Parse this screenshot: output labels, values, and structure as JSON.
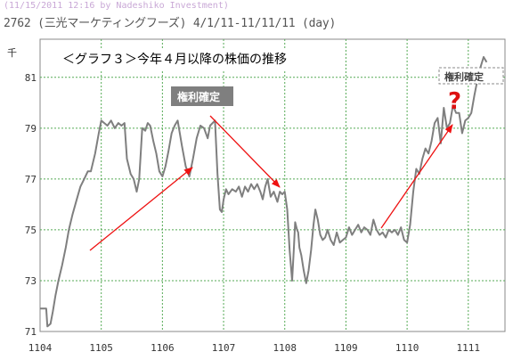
{
  "header": {
    "timestamp_line": "(11/15/2011 12:16 by Nadeshiko Investment)",
    "title_line": "2762 (三光マーケティングフーズ) 4/1/11-11/11/11 (day)"
  },
  "colors": {
    "background": "#ffffff",
    "plot_background": "#ffffff",
    "grid": "#55aa55",
    "price_line": "#7f7f7f",
    "arrow": "#ee1111",
    "label_box": "#7f7f7f",
    "question_mark": "#dd1111"
  },
  "chart_data": {
    "type": "line",
    "title": "",
    "ylabel": "千",
    "xlabel": "",
    "ylim": [
      71,
      82.5
    ],
    "yticks": [
      71,
      73,
      75,
      77,
      79,
      81
    ],
    "xlim": [
      0,
      7.6
    ],
    "x_ticks": [
      {
        "pos": 0,
        "label": "1104"
      },
      {
        "pos": 1,
        "label": "1105"
      },
      {
        "pos": 2,
        "label": "1106"
      },
      {
        "pos": 3,
        "label": "1107"
      },
      {
        "pos": 4,
        "label": "1108"
      },
      {
        "pos": 5,
        "label": "1109"
      },
      {
        "pos": 6,
        "label": "1110"
      },
      {
        "pos": 7,
        "label": "1111"
      }
    ],
    "grid": true,
    "series": [
      {
        "name": "",
        "x": [
          0.0,
          0.1,
          0.12,
          0.17,
          0.21,
          0.25,
          0.3,
          0.36,
          0.42,
          0.47,
          0.53,
          0.6,
          0.66,
          0.72,
          0.78,
          0.83,
          0.9,
          0.96,
          1.0,
          1.05,
          1.1,
          1.16,
          1.22,
          1.28,
          1.33,
          1.38,
          1.42,
          1.48,
          1.53,
          1.58,
          1.62,
          1.67,
          1.72,
          1.76,
          1.8,
          1.85,
          1.9,
          1.95,
          2.0,
          2.05,
          2.1,
          2.15,
          2.2,
          2.25,
          2.32,
          2.38,
          2.44,
          2.5,
          2.56,
          2.62,
          2.68,
          2.74,
          2.78,
          2.82,
          2.86,
          2.9,
          2.94,
          2.97,
          3.0,
          3.04,
          3.08,
          3.14,
          3.2,
          3.25,
          3.3,
          3.35,
          3.4,
          3.45,
          3.5,
          3.55,
          3.6,
          3.64,
          3.68,
          3.72,
          3.77,
          3.82,
          3.88,
          3.92,
          3.96,
          4.0,
          4.04,
          4.08,
          4.12,
          4.15,
          4.17,
          4.2,
          4.22,
          4.24,
          4.27,
          4.31,
          4.35,
          4.39,
          4.43,
          4.47,
          4.5,
          4.54,
          4.58,
          4.62,
          4.66,
          4.7,
          4.75,
          4.8,
          4.85,
          4.9,
          4.95,
          5.0,
          5.05,
          5.1,
          5.15,
          5.2,
          5.25,
          5.3,
          5.35,
          5.4,
          5.45,
          5.5,
          5.55,
          5.6,
          5.65,
          5.7,
          5.75,
          5.8,
          5.85,
          5.9,
          5.95,
          6.0,
          6.05,
          6.1,
          6.15,
          6.2,
          6.25,
          6.3,
          6.35,
          6.4,
          6.45,
          6.5,
          6.55,
          6.6,
          6.65,
          6.7,
          6.75,
          6.8,
          6.85,
          6.9,
          6.95,
          7.0,
          7.05,
          7.1,
          7.15,
          7.2,
          7.25,
          7.3
        ],
        "values": [
          71.9,
          71.9,
          71.2,
          71.3,
          71.8,
          72.4,
          73.0,
          73.6,
          74.3,
          75.0,
          75.6,
          76.2,
          76.7,
          77.0,
          77.3,
          77.3,
          78.0,
          78.8,
          79.3,
          79.2,
          79.1,
          79.3,
          79.0,
          79.2,
          79.1,
          79.2,
          77.8,
          77.2,
          77.0,
          76.5,
          77.0,
          79.0,
          78.9,
          79.2,
          79.1,
          78.5,
          78.0,
          77.3,
          77.1,
          77.5,
          78.1,
          78.8,
          79.1,
          79.3,
          78.3,
          77.5,
          77.1,
          77.8,
          78.6,
          79.1,
          79.0,
          78.6,
          79.1,
          79.2,
          79.3,
          77.2,
          75.8,
          75.7,
          76.2,
          76.6,
          76.4,
          76.6,
          76.5,
          76.7,
          76.3,
          76.7,
          76.5,
          76.8,
          76.6,
          76.8,
          76.5,
          76.2,
          76.7,
          77.0,
          76.3,
          76.5,
          76.1,
          76.5,
          76.4,
          76.5,
          75.8,
          74.2,
          73.0,
          74.3,
          75.3,
          75.0,
          74.9,
          74.3,
          74.0,
          73.4,
          72.9,
          73.4,
          74.2,
          75.2,
          75.8,
          75.4,
          74.8,
          74.6,
          74.7,
          75.0,
          74.6,
          74.4,
          74.9,
          74.5,
          74.6,
          74.7,
          75.1,
          74.8,
          75.0,
          75.2,
          74.9,
          75.1,
          75.0,
          74.8,
          75.4,
          75.0,
          74.8,
          74.9,
          74.7,
          75.0,
          74.9,
          75.0,
          74.8,
          75.1,
          74.6,
          74.5,
          75.2,
          76.5,
          77.4,
          77.2,
          77.8,
          78.2,
          78.0,
          78.5,
          79.2,
          79.4,
          78.4,
          79.8,
          79.0,
          79.2,
          79.9,
          79.6,
          79.6,
          78.8,
          79.3,
          79.4,
          79.6,
          80.3,
          80.9,
          81.4,
          81.8,
          81.6
        ],
        "color": "#7f7f7f"
      }
    ]
  },
  "annotations": {
    "title_box": "＜グラフ３＞今年４月以降の株価の推移",
    "kenri_label": "権利確定",
    "kenri_label_future": "権利確定",
    "question_mark": "?"
  }
}
